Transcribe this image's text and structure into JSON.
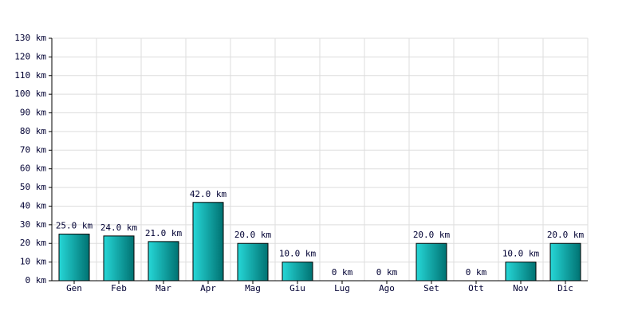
{
  "chart_data": {
    "type": "bar",
    "categories": [
      "Gen",
      "Feb",
      "Mar",
      "Apr",
      "Mag",
      "Giu",
      "Lug",
      "Ago",
      "Set",
      "Ott",
      "Nov",
      "Dic"
    ],
    "values": [
      25,
      24,
      21,
      42,
      20,
      10,
      0,
      0,
      20,
      0,
      10,
      20
    ],
    "value_labels": [
      "25.0 km",
      "24.0 km",
      "21.0 km",
      "42.0 km",
      "20.0 km",
      "10.0 km",
      "0 km",
      "0 km",
      "20.0 km",
      "0 km",
      "10.0 km",
      "20.0 km"
    ],
    "color": "#00d0d0",
    "ylim": [
      0,
      130
    ],
    "yticks": [
      {
        "value": 0,
        "label": "0 km"
      },
      {
        "value": 10,
        "label": "10 km"
      },
      {
        "value": 20,
        "label": "20 km"
      },
      {
        "value": 30,
        "label": "30 km"
      },
      {
        "value": 40,
        "label": "40 km"
      },
      {
        "value": 50,
        "label": "50 km"
      },
      {
        "value": 60,
        "label": "60 km"
      },
      {
        "value": 70,
        "label": "70 km"
      },
      {
        "value": 80,
        "label": "80 km"
      },
      {
        "value": 90,
        "label": "90 km"
      },
      {
        "value": 100,
        "label": "100 km"
      },
      {
        "value": 110,
        "label": "110 km"
      },
      {
        "value": 120,
        "label": "120 km"
      },
      {
        "value": 130,
        "label": "130 km"
      }
    ],
    "grid": true
  }
}
